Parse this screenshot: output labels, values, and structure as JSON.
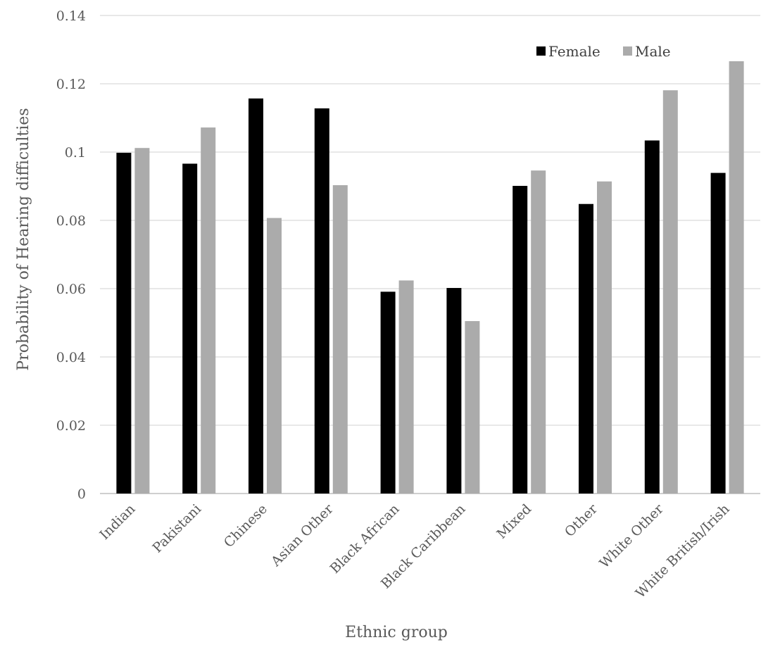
{
  "chart_data": {
    "type": "bar",
    "title": "",
    "xlabel": "Ethnic group",
    "ylabel": "Probability of Hearing difficulties",
    "categories": [
      "Indian",
      "Pakistani",
      "Chinese",
      "Asian Other",
      "Black African",
      "Black Caribbean",
      "Mixed",
      "Other",
      "White Other",
      "White British/Irish"
    ],
    "series": [
      {
        "name": "Female",
        "color": "#000000",
        "values": [
          0.0998,
          0.0966,
          0.1157,
          0.1128,
          0.0591,
          0.0602,
          0.0901,
          0.0848,
          0.1034,
          0.0939
        ]
      },
      {
        "name": "Male",
        "color": "#ababab",
        "values": [
          0.1012,
          0.1072,
          0.0807,
          0.0903,
          0.0624,
          0.0505,
          0.0946,
          0.0914,
          0.1181,
          0.1266
        ]
      }
    ],
    "ylim": [
      0,
      0.14
    ],
    "yticks": [
      "0",
      "0.02",
      "0.04",
      "0.06",
      "0.08",
      "0.1",
      "0.12",
      "0.14"
    ],
    "grid": true,
    "legend_position": "top-right"
  }
}
